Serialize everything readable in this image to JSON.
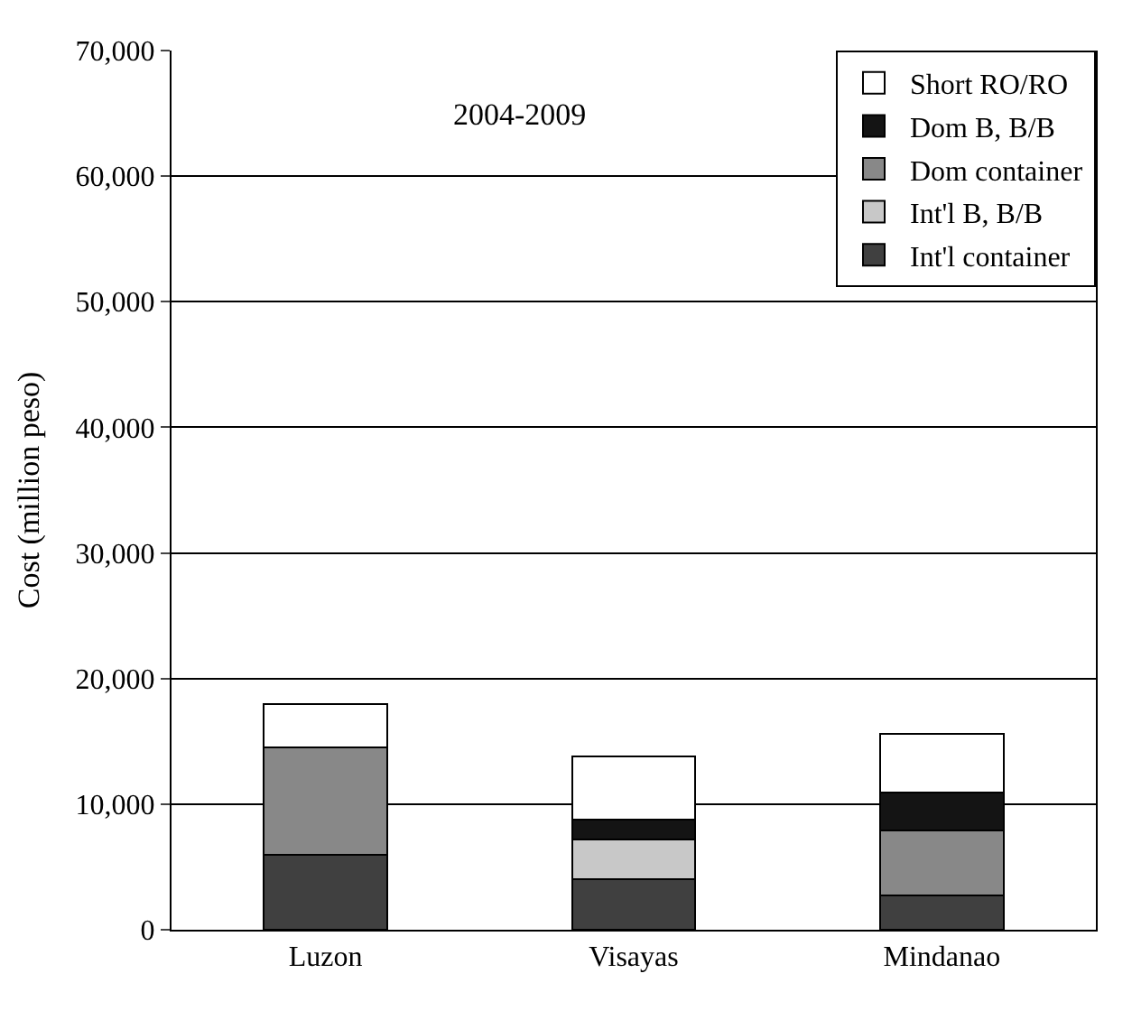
{
  "chart_data": {
    "type": "bar",
    "stacked": true,
    "ylabel": "Cost (million peso)",
    "categories": [
      "Luzon",
      "Visayas",
      "Mindanao"
    ],
    "series": [
      {
        "name": "Int'l container",
        "color": "#404040",
        "values": [
          6000,
          4000,
          2700
        ]
      },
      {
        "name": "Int'l B, B/B",
        "color": "#c8c8c8",
        "values": [
          0,
          3200,
          0
        ]
      },
      {
        "name": "Dom container",
        "color": "#888888",
        "values": [
          8500,
          0,
          5200
        ]
      },
      {
        "name": "Dom B, B/B",
        "color": "#141414",
        "values": [
          0,
          1600,
          3000
        ]
      },
      {
        "name": "Short RO/RO",
        "color": "#ffffff",
        "values": [
          3500,
          5000,
          4700
        ]
      }
    ],
    "ylim": [
      0,
      70000
    ],
    "yticks": [
      {
        "value": 0,
        "label": "0"
      },
      {
        "value": 10000,
        "label": "10,000"
      },
      {
        "value": 20000,
        "label": "20,000"
      },
      {
        "value": 30000,
        "label": "30,000"
      },
      {
        "value": 40000,
        "label": "40,000"
      },
      {
        "value": 50000,
        "label": "50,000"
      },
      {
        "value": 60000,
        "label": "60,000"
      },
      {
        "value": 70000,
        "label": "70,000"
      }
    ],
    "grid": "y",
    "legend": "top right",
    "annotations": [
      "2004-2009"
    ]
  }
}
